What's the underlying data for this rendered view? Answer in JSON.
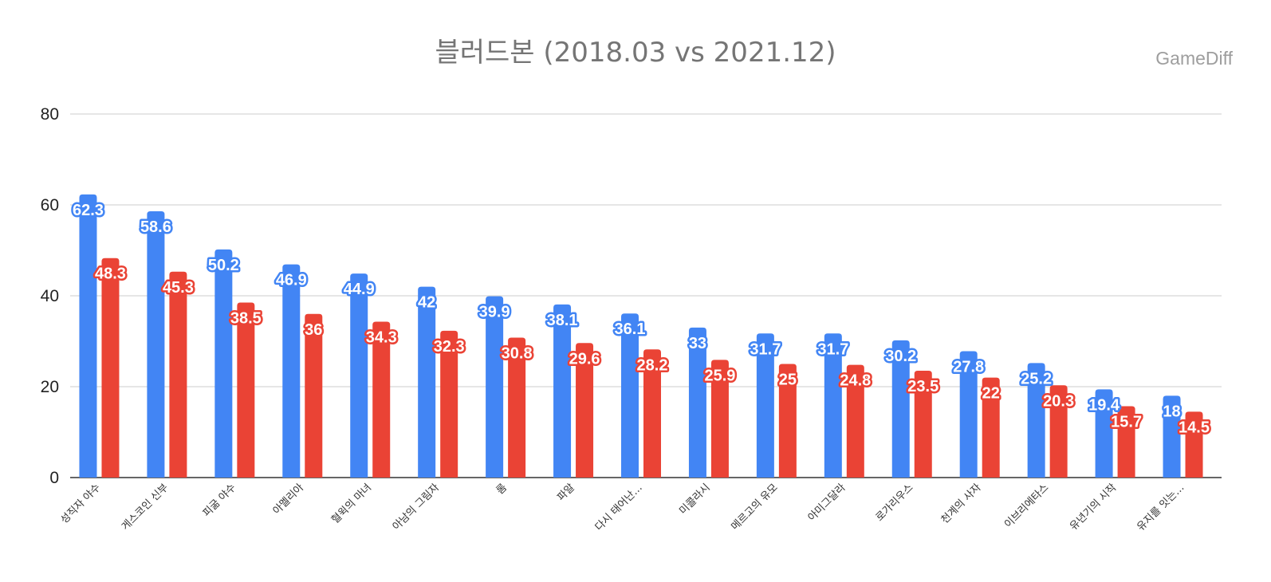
{
  "title": "블러드본 (2018.03 vs 2021.12)",
  "watermark": "GameDiff",
  "colors": {
    "series1": "#4285f4",
    "series2": "#ea4335",
    "grid": "#cccccc",
    "axis": "#333333"
  },
  "chart_data": {
    "type": "bar",
    "title": "블러드본 (2018.03 vs 2021.12)",
    "xlabel": "",
    "ylabel": "",
    "ylim": [
      0,
      80
    ],
    "yticks": [
      0,
      20,
      40,
      60,
      80
    ],
    "grid": true,
    "legend": "none",
    "categories": [
      "성직자 야수",
      "게스코인 신부",
      "피굶 야수",
      "아멜리아",
      "혈윅의 마녀",
      "아남의 그림자",
      "롬",
      "파알",
      "다시 태어난…",
      "미콜라시",
      "메르고의 유모",
      "아미그달라",
      "로가리우스",
      "천계의 사자",
      "이브리에타스",
      "유년기의 시작",
      "유지를 잇는…"
    ],
    "series": [
      {
        "values": [
          62.3,
          58.6,
          50.2,
          46.9,
          44.9,
          42,
          39.9,
          38.1,
          36.1,
          33,
          31.7,
          31.7,
          30.2,
          27.8,
          25.2,
          19.4,
          18
        ]
      },
      {
        "values": [
          48.3,
          45.3,
          38.5,
          36,
          34.3,
          32.3,
          30.8,
          29.6,
          28.2,
          25.9,
          25,
          24.8,
          23.5,
          22,
          20.3,
          15.7,
          14.5
        ]
      }
    ]
  }
}
